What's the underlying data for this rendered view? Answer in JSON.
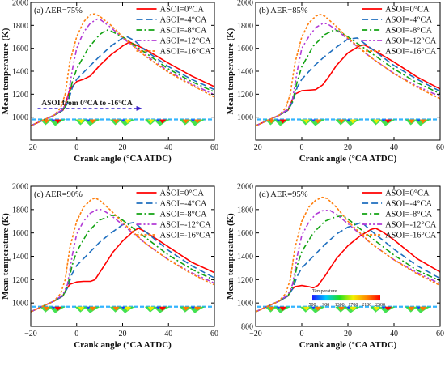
{
  "figure": {
    "xlabel": "Crank angle (°CA ATDC)",
    "ylabel": "Mean temperature (K)",
    "legend": [
      "ASOI=0°CA",
      "ASOI=-4°CA",
      "ASOI=-8°CA",
      "ASOI=-12°CA",
      "ASOI=-16°CA"
    ],
    "annotation": "ASOI from 0°CA to -16°CA",
    "colorbar": {
      "title": "Temperature",
      "ticks": [
        "500",
        "900",
        "1300",
        "1700",
        "2100",
        "2500"
      ]
    }
  },
  "chart_data": [
    {
      "type": "line",
      "title": "(a) AER=75%",
      "xlabel": "Crank angle (°CA ATDC)",
      "ylabel": "Mean temperature (K)",
      "xlim": [
        -20,
        60
      ],
      "ylim": [
        800,
        2000
      ],
      "xticks": [
        -20,
        0,
        20,
        40,
        60
      ],
      "yticks": [
        800,
        1000,
        1200,
        1400,
        1600,
        1800,
        2000
      ],
      "ytick_labels": [
        "",
        "1000",
        "1200",
        "1400",
        "1600",
        "1800",
        "2000"
      ],
      "series": [
        {
          "name": "ASOI=0°CA",
          "color": "#ff0000",
          "dash": "solid",
          "x": [
            -20,
            -10,
            -6,
            -5,
            -3,
            0,
            3,
            6,
            10,
            15,
            20,
            23,
            30,
            40,
            50,
            60
          ],
          "y": [
            925,
            1015,
            1060,
            1110,
            1240,
            1310,
            1330,
            1360,
            1450,
            1545,
            1620,
            1655,
            1590,
            1470,
            1360,
            1265
          ]
        },
        {
          "name": "ASOI=-4°CA",
          "color": "#1f6fbf",
          "dash": "8,4",
          "x": [
            -20,
            -10,
            -6,
            -4,
            -2,
            0,
            5,
            10,
            15,
            20,
            22,
            25,
            30,
            40,
            50,
            60
          ],
          "y": [
            925,
            1015,
            1060,
            1120,
            1250,
            1330,
            1430,
            1530,
            1620,
            1690,
            1700,
            1670,
            1580,
            1440,
            1330,
            1240
          ]
        },
        {
          "name": "ASOI=-8°CA",
          "color": "#13a313",
          "dash": "7,3,2,3",
          "x": [
            -20,
            -10,
            -6,
            -4,
            -2,
            0,
            5,
            10,
            13,
            15,
            20,
            30,
            40,
            50,
            60
          ],
          "y": [
            925,
            1015,
            1060,
            1130,
            1300,
            1420,
            1600,
            1720,
            1760,
            1750,
            1700,
            1560,
            1420,
            1310,
            1220
          ]
        },
        {
          "name": "ASOI=-12°CA",
          "color": "#b23bd6",
          "dash": "6,3,2,3,2,3",
          "x": [
            -20,
            -10,
            -6,
            -4,
            -2,
            0,
            3,
            6,
            9,
            10,
            15,
            20,
            30,
            40,
            50,
            60
          ],
          "y": [
            925,
            1015,
            1070,
            1150,
            1400,
            1600,
            1740,
            1820,
            1855,
            1855,
            1780,
            1690,
            1540,
            1400,
            1290,
            1195
          ]
        },
        {
          "name": "ASOI=-16°CA",
          "color": "#ff7f0e",
          "dash": "3,2",
          "x": [
            -20,
            -10,
            -7,
            -5,
            -3,
            0,
            3,
            6,
            8,
            10,
            15,
            20,
            30,
            40,
            50,
            60
          ],
          "y": [
            925,
            1015,
            1080,
            1200,
            1480,
            1700,
            1830,
            1895,
            1900,
            1880,
            1800,
            1700,
            1530,
            1390,
            1280,
            1175
          ]
        }
      ]
    },
    {
      "type": "line",
      "title": "(b) AER=85%",
      "xlabel": "Crank angle (°CA ATDC)",
      "ylabel": "Mean temperature (K)",
      "xlim": [
        -20,
        60
      ],
      "ylim": [
        800,
        2000
      ],
      "xticks": [
        -20,
        0,
        20,
        40,
        60
      ],
      "yticks": [
        800,
        1000,
        1200,
        1400,
        1600,
        1800,
        2000
      ],
      "ytick_labels": [
        "",
        "1000",
        "1200",
        "1400",
        "1600",
        "1800",
        "2000"
      ],
      "series": [
        {
          "name": "ASOI=0°CA",
          "color": "#ff0000",
          "dash": "solid",
          "x": [
            -20,
            -10,
            -6,
            -5,
            -3,
            0,
            3,
            6,
            9,
            12,
            15,
            20,
            25,
            27,
            30,
            40,
            50,
            60
          ],
          "y": [
            925,
            1015,
            1060,
            1110,
            1200,
            1230,
            1235,
            1240,
            1280,
            1360,
            1450,
            1560,
            1620,
            1630,
            1600,
            1480,
            1350,
            1245
          ]
        },
        {
          "name": "ASOI=-4°CA",
          "color": "#1f6fbf",
          "dash": "8,4",
          "x": [
            -20,
            -10,
            -6,
            -4,
            -2,
            0,
            5,
            10,
            15,
            20,
            24,
            30,
            40,
            50,
            60
          ],
          "y": [
            925,
            1015,
            1060,
            1130,
            1260,
            1330,
            1440,
            1530,
            1610,
            1680,
            1690,
            1600,
            1450,
            1330,
            1225
          ]
        },
        {
          "name": "ASOI=-8°CA",
          "color": "#13a313",
          "dash": "7,3,2,3",
          "x": [
            -20,
            -10,
            -6,
            -4,
            -2,
            0,
            5,
            10,
            14,
            16,
            20,
            30,
            40,
            50,
            60
          ],
          "y": [
            925,
            1015,
            1060,
            1140,
            1310,
            1440,
            1620,
            1720,
            1760,
            1750,
            1700,
            1560,
            1420,
            1300,
            1205
          ]
        },
        {
          "name": "ASOI=-12°CA",
          "color": "#b23bd6",
          "dash": "6,3,2,3,2,3",
          "x": [
            -20,
            -10,
            -6,
            -4,
            -2,
            0,
            3,
            6,
            9,
            11,
            15,
            20,
            30,
            40,
            50,
            60
          ],
          "y": [
            925,
            1015,
            1070,
            1160,
            1400,
            1600,
            1700,
            1780,
            1815,
            1815,
            1760,
            1680,
            1520,
            1380,
            1270,
            1180
          ]
        },
        {
          "name": "ASOI=-16°CA",
          "color": "#ff7f0e",
          "dash": "3,2",
          "x": [
            -20,
            -10,
            -7,
            -5,
            -3,
            0,
            3,
            6,
            8,
            10,
            15,
            20,
            30,
            40,
            50,
            60
          ],
          "y": [
            925,
            1015,
            1080,
            1200,
            1470,
            1700,
            1820,
            1880,
            1895,
            1880,
            1790,
            1690,
            1520,
            1380,
            1260,
            1160
          ]
        }
      ]
    },
    {
      "type": "line",
      "title": "(c) AER=90%",
      "xlabel": "Crank angle (°CA ATDC)",
      "ylabel": "Mean temperature (K)",
      "xlim": [
        -20,
        60
      ],
      "ylim": [
        800,
        2000
      ],
      "xticks": [
        -20,
        0,
        20,
        40,
        60
      ],
      "yticks": [
        800,
        1000,
        1200,
        1400,
        1600,
        1800,
        2000
      ],
      "ytick_labels": [
        "",
        "1000",
        "1200",
        "1400",
        "1600",
        "1800",
        "2000"
      ],
      "series": [
        {
          "name": "ASOI=0°CA",
          "color": "#ff0000",
          "dash": "solid",
          "x": [
            -20,
            -10,
            -6,
            -5,
            -3,
            0,
            3,
            6,
            8,
            10,
            13,
            16,
            20,
            25,
            27,
            30,
            40,
            50,
            60
          ],
          "y": [
            925,
            1015,
            1060,
            1100,
            1160,
            1180,
            1185,
            1185,
            1200,
            1260,
            1350,
            1440,
            1530,
            1620,
            1640,
            1610,
            1480,
            1350,
            1260
          ]
        },
        {
          "name": "ASOI=-4°CA",
          "color": "#1f6fbf",
          "dash": "8,4",
          "x": [
            -20,
            -10,
            -6,
            -4,
            -2,
            0,
            5,
            10,
            15,
            20,
            25,
            30,
            40,
            50,
            60
          ],
          "y": [
            925,
            1015,
            1060,
            1130,
            1250,
            1320,
            1420,
            1520,
            1600,
            1670,
            1690,
            1610,
            1450,
            1320,
            1215
          ]
        },
        {
          "name": "ASOI=-8°CA",
          "color": "#13a313",
          "dash": "7,3,2,3",
          "x": [
            -20,
            -10,
            -6,
            -4,
            -2,
            0,
            5,
            10,
            15,
            17,
            20,
            30,
            40,
            50,
            60
          ],
          "y": [
            925,
            1015,
            1060,
            1140,
            1320,
            1440,
            1610,
            1710,
            1750,
            1750,
            1710,
            1560,
            1410,
            1290,
            1195
          ]
        },
        {
          "name": "ASOI=-12°CA",
          "color": "#b23bd6",
          "dash": "6,3,2,3,2,3",
          "x": [
            -20,
            -10,
            -6,
            -4,
            -2,
            0,
            3,
            6,
            9,
            11,
            15,
            20,
            30,
            40,
            50,
            60
          ],
          "y": [
            925,
            1015,
            1070,
            1160,
            1400,
            1590,
            1700,
            1770,
            1800,
            1800,
            1750,
            1670,
            1510,
            1370,
            1260,
            1170
          ]
        },
        {
          "name": "ASOI=-16°CA",
          "color": "#ff7f0e",
          "dash": "3,2",
          "x": [
            -20,
            -10,
            -7,
            -5,
            -3,
            0,
            3,
            6,
            8,
            10,
            15,
            20,
            30,
            40,
            50,
            60
          ],
          "y": [
            925,
            1015,
            1080,
            1200,
            1470,
            1700,
            1820,
            1880,
            1900,
            1880,
            1790,
            1690,
            1510,
            1370,
            1250,
            1155
          ]
        }
      ]
    },
    {
      "type": "line",
      "title": "(d) AER=95%",
      "xlabel": "Crank angle (°CA ATDC)",
      "ylabel": "Mean temperature (K)",
      "xlim": [
        -20,
        60
      ],
      "ylim": [
        800,
        2000
      ],
      "xticks": [
        -20,
        0,
        20,
        40,
        60
      ],
      "yticks": [
        800,
        1000,
        1200,
        1400,
        1600,
        1800,
        2000
      ],
      "ytick_labels": [
        "800",
        "1000",
        "1200",
        "1400",
        "1600",
        "1800",
        "2000"
      ],
      "series": [
        {
          "name": "ASOI=0°CA",
          "color": "#ff0000",
          "dash": "solid",
          "x": [
            -20,
            -10,
            -6,
            -5,
            -3,
            0,
            3,
            5,
            7,
            10,
            15,
            20,
            25,
            30,
            32,
            35,
            40,
            50,
            60
          ],
          "y": [
            925,
            1015,
            1060,
            1100,
            1140,
            1150,
            1140,
            1130,
            1150,
            1230,
            1380,
            1490,
            1570,
            1630,
            1640,
            1610,
            1540,
            1380,
            1265
          ]
        },
        {
          "name": "ASOI=-4°CA",
          "color": "#1f6fbf",
          "dash": "8,4",
          "x": [
            -20,
            -10,
            -6,
            -4,
            -2,
            0,
            5,
            10,
            15,
            20,
            26,
            30,
            40,
            50,
            60
          ],
          "y": [
            925,
            1015,
            1060,
            1120,
            1230,
            1300,
            1400,
            1500,
            1590,
            1650,
            1690,
            1620,
            1460,
            1320,
            1210
          ]
        },
        {
          "name": "ASOI=-8°CA",
          "color": "#13a313",
          "dash": "7,3,2,3",
          "x": [
            -20,
            -10,
            -6,
            -4,
            -2,
            0,
            5,
            10,
            15,
            18,
            20,
            30,
            40,
            50,
            60
          ],
          "y": [
            925,
            1015,
            1060,
            1140,
            1320,
            1440,
            1600,
            1700,
            1740,
            1745,
            1720,
            1560,
            1410,
            1280,
            1190
          ]
        },
        {
          "name": "ASOI=-12°CA",
          "color": "#b23bd6",
          "dash": "6,3,2,3,2,3",
          "x": [
            -20,
            -10,
            -6,
            -4,
            -2,
            0,
            3,
            6,
            9,
            12,
            15,
            20,
            30,
            40,
            50,
            60
          ],
          "y": [
            925,
            1015,
            1070,
            1160,
            1400,
            1580,
            1690,
            1760,
            1790,
            1795,
            1760,
            1680,
            1510,
            1370,
            1260,
            1165
          ]
        },
        {
          "name": "ASOI=-16°CA",
          "color": "#ff7f0e",
          "dash": "3,2",
          "x": [
            -20,
            -10,
            -7,
            -5,
            -3,
            0,
            3,
            6,
            9,
            11,
            15,
            20,
            30,
            40,
            50,
            60
          ],
          "y": [
            925,
            1015,
            1080,
            1200,
            1470,
            1700,
            1820,
            1880,
            1905,
            1895,
            1820,
            1700,
            1510,
            1370,
            1250,
            1150
          ]
        }
      ]
    }
  ]
}
